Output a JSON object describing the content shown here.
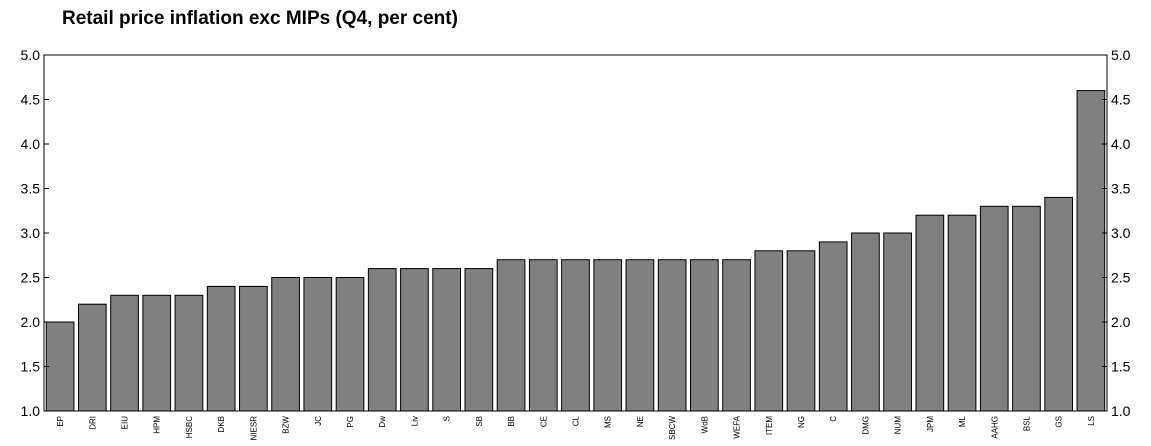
{
  "chart_data": {
    "type": "bar",
    "title": "Retail price inflation exc MIPs (Q4, per cent)",
    "xlabel": "",
    "ylabel": "",
    "ylim": [
      1.0,
      5.0
    ],
    "yticks": [
      "1.0",
      "1.5",
      "2.0",
      "2.5",
      "3.0",
      "3.5",
      "4.0",
      "4.5",
      "5.0"
    ],
    "right_axis_ticks": true,
    "grid": false,
    "bar_color": "#808080",
    "categories": [
      "EP",
      "DRI",
      "EIU",
      "HPM",
      "HSBC",
      "DKB",
      "NIESR",
      "BZW",
      "JC",
      "PG",
      "Dw",
      "Liv",
      "S",
      "SB",
      "BB",
      "CE",
      "CL",
      "MS",
      "NE",
      "SBCW",
      "WdB",
      "WEFA",
      "ITEM",
      "NG",
      "C",
      "DMG",
      "NUM",
      "JPM",
      "ML",
      "AAHG",
      "BSL",
      "GS",
      "LS"
    ],
    "values": [
      2.0,
      2.2,
      2.3,
      2.3,
      2.3,
      2.4,
      2.4,
      2.5,
      2.5,
      2.5,
      2.6,
      2.6,
      2.6,
      2.6,
      2.7,
      2.7,
      2.7,
      2.7,
      2.7,
      2.7,
      2.7,
      2.7,
      2.8,
      2.8,
      2.9,
      3.0,
      3.0,
      3.2,
      3.2,
      3.3,
      3.3,
      3.4,
      4.6
    ]
  }
}
